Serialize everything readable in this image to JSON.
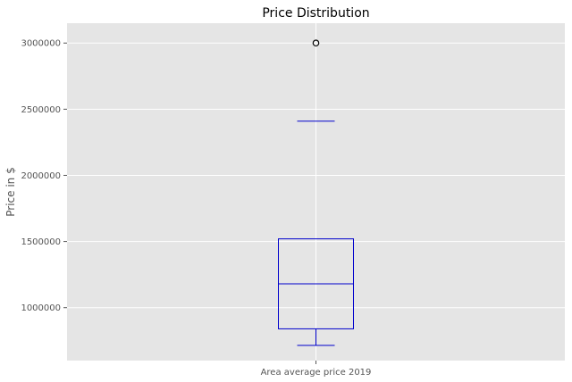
{
  "chart_data": {
    "type": "box",
    "title": "Price Distribution",
    "ylabel": "Price in $",
    "xlabel": "",
    "categories": [
      "Area average price 2019"
    ],
    "ylim": [
      600000,
      3150000
    ],
    "yticks": [
      1000000,
      1500000,
      2000000,
      2500000,
      3000000
    ],
    "ytick_labels": [
      "1000000",
      "1500000",
      "2000000",
      "2500000",
      "3000000"
    ],
    "grid": true,
    "box": {
      "whisker_low": 715000,
      "q1": 840000,
      "median": 1180000,
      "q3": 1520000,
      "whisker_high": 2410000,
      "outliers": [
        3000000
      ]
    },
    "colors": {
      "background": "#E5E5E5",
      "grid": "#FFFFFF",
      "box": "#0000CC",
      "median": "#0000CC",
      "whisker_stem": "#FFFFFF",
      "outlier": "#000000"
    }
  }
}
